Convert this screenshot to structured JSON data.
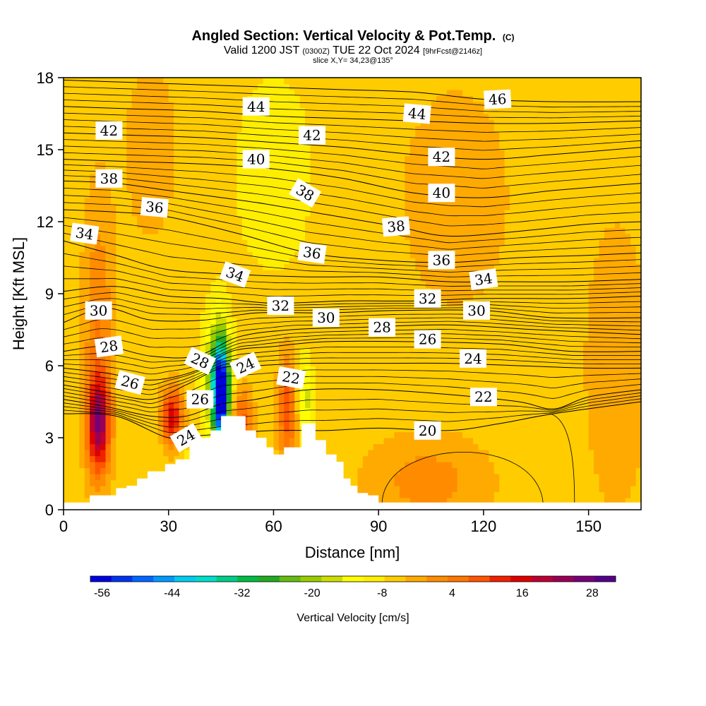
{
  "title": {
    "main": "Angled Section: Vertical Velocity & Pot.Temp.",
    "main_suffix": "(C)",
    "valid_prefix": "Valid 1200 JST",
    "valid_z": "(0300Z)",
    "valid_date": "TUE 22 Oct 2024",
    "valid_fcst": "[9hrFcst@2146z]",
    "slice": "slice X,Y= 34,23@135°"
  },
  "chart_data": {
    "type": "heatmap",
    "xlabel": "Distance [nm]",
    "ylabel": "Height [Kft MSL]",
    "xlim": [
      0,
      165
    ],
    "ylim": [
      0,
      18
    ],
    "x_ticks": [
      0,
      30,
      60,
      90,
      120,
      150
    ],
    "y_ticks": [
      0,
      3,
      6,
      9,
      12,
      15,
      18
    ],
    "colorbar": {
      "label": "Vertical Velocity [cm/s]",
      "min": -58,
      "max": 32,
      "step": 4,
      "tick_values": [
        -56,
        -44,
        -32,
        -20,
        -8,
        4,
        16,
        28
      ],
      "colors": [
        "#0000dd",
        "#0033ee",
        "#0066ff",
        "#0099ff",
        "#00ccee",
        "#00ddcc",
        "#00cc88",
        "#00bb44",
        "#22aa22",
        "#66bb11",
        "#99cc00",
        "#ccdd00",
        "#ffff00",
        "#ffee00",
        "#ffcc00",
        "#ffaa00",
        "#ff8c00",
        "#ff7700",
        "#ff5500",
        "#ee2200",
        "#dd0000",
        "#bb0033",
        "#990055",
        "#770077",
        "#550088"
      ]
    },
    "background_value": 0,
    "velocity_features": [
      {
        "x": 10,
        "y": 3.6,
        "sx": 2.2,
        "sy": 1.4,
        "value": 30
      },
      {
        "x": 10,
        "y": 7.5,
        "sx": 3.0,
        "sy": 3.8,
        "value": 10
      },
      {
        "x": 31,
        "y": 3.9,
        "sx": 2.0,
        "sy": 0.8,
        "value": 26
      },
      {
        "x": 45,
        "y": 4.8,
        "sx": 1.4,
        "sy": 1.3,
        "value": -56
      },
      {
        "x": 44,
        "y": 5.5,
        "sx": 2.6,
        "sy": 1.8,
        "value": -24
      },
      {
        "x": 51,
        "y": 3.8,
        "sx": 2.0,
        "sy": 0.9,
        "value": 16
      },
      {
        "x": 64,
        "y": 4.2,
        "sx": 1.8,
        "sy": 1.5,
        "value": 18
      },
      {
        "x": 69,
        "y": 4.6,
        "sx": 1.5,
        "sy": 1.2,
        "value": -12
      },
      {
        "x": 104,
        "y": 1.2,
        "sx": 12.0,
        "sy": 1.3,
        "value": 8
      },
      {
        "x": 112,
        "y": 13.0,
        "sx": 10.0,
        "sy": 3.0,
        "value": 6
      },
      {
        "x": 60,
        "y": 14.0,
        "sx": 8.0,
        "sy": 3.0,
        "value": -5
      },
      {
        "x": 25,
        "y": 15.0,
        "sx": 6.0,
        "sy": 3.0,
        "value": 4
      },
      {
        "x": 158,
        "y": 6.0,
        "sx": 6.0,
        "sy": 4.0,
        "value": 6
      },
      {
        "x": 40,
        "y": 2.1,
        "sx": 3.0,
        "sy": 0.5,
        "value": -14
      }
    ],
    "terrain_steps": [
      [
        0,
        0.3
      ],
      [
        7.5,
        0.6
      ],
      [
        15,
        0.9
      ],
      [
        18,
        1.0
      ],
      [
        21,
        1.3
      ],
      [
        24,
        1.6
      ],
      [
        29,
        1.9
      ],
      [
        32,
        2.1
      ],
      [
        36,
        2.8
      ],
      [
        38,
        3.0
      ],
      [
        42,
        3.3
      ],
      [
        45,
        3.9
      ],
      [
        48,
        3.9
      ],
      [
        52,
        3.3
      ],
      [
        55,
        3.0
      ],
      [
        58,
        2.6
      ],
      [
        60,
        2.3
      ],
      [
        62,
        2.3
      ],
      [
        63,
        2.6
      ],
      [
        65,
        2.6
      ],
      [
        68,
        3.6
      ],
      [
        70,
        3.6
      ],
      [
        72,
        2.9
      ],
      [
        75,
        2.3
      ],
      [
        78,
        2.0
      ],
      [
        80,
        1.3
      ],
      [
        82,
        1.0
      ],
      [
        84,
        0.7
      ],
      [
        87,
        0.6
      ],
      [
        90,
        0.3
      ],
      [
        165,
        0.3
      ]
    ],
    "isentropes": [
      {
        "theta": 20,
        "points": [
          [
            0,
            4.0
          ],
          [
            15,
            3.9
          ],
          [
            30,
            3.0
          ],
          [
            40,
            3.1
          ],
          [
            60,
            3.3
          ],
          [
            75,
            3.3
          ],
          [
            90,
            3.4
          ],
          [
            110,
            3.3
          ],
          [
            125,
            3.6
          ],
          [
            140,
            4.0
          ],
          [
            165,
            4.5
          ]
        ]
      },
      {
        "theta": 22,
        "points": [
          [
            0,
            4.6
          ],
          [
            12,
            4.3
          ],
          [
            25,
            3.9
          ],
          [
            35,
            3.9
          ],
          [
            45,
            4.4
          ],
          [
            55,
            4.6
          ],
          [
            70,
            5.0
          ],
          [
            90,
            5.0
          ],
          [
            110,
            4.8
          ],
          [
            130,
            4.5
          ],
          [
            140,
            4.2
          ],
          [
            150,
            4.7
          ],
          [
            165,
            5.0
          ]
        ]
      },
      {
        "theta": 24,
        "points": [
          [
            0,
            5.2
          ],
          [
            12,
            4.9
          ],
          [
            25,
            4.6
          ],
          [
            35,
            5.2
          ],
          [
            45,
            5.9
          ],
          [
            55,
            6.0
          ],
          [
            70,
            6.1
          ],
          [
            90,
            6.1
          ],
          [
            110,
            6.1
          ],
          [
            130,
            6.0
          ],
          [
            150,
            5.9
          ],
          [
            165,
            5.9
          ]
        ]
      },
      {
        "theta": 26,
        "points": [
          [
            0,
            5.9
          ],
          [
            12,
            5.7
          ],
          [
            25,
            5.4
          ],
          [
            38,
            5.8
          ],
          [
            48,
            6.6
          ],
          [
            60,
            6.8
          ],
          [
            75,
            7.0
          ],
          [
            100,
            7.0
          ],
          [
            125,
            6.9
          ],
          [
            145,
            6.6
          ],
          [
            165,
            6.6
          ]
        ]
      },
      {
        "theta": 28,
        "points": [
          [
            0,
            6.6
          ],
          [
            12,
            6.8
          ],
          [
            25,
            6.4
          ],
          [
            38,
            6.4
          ],
          [
            50,
            7.2
          ],
          [
            65,
            7.5
          ],
          [
            85,
            7.6
          ],
          [
            110,
            7.7
          ],
          [
            135,
            7.5
          ],
          [
            165,
            7.3
          ]
        ]
      },
      {
        "theta": 30,
        "points": [
          [
            0,
            7.8
          ],
          [
            12,
            8.4
          ],
          [
            25,
            7.9
          ],
          [
            40,
            7.9
          ],
          [
            55,
            8.2
          ],
          [
            75,
            8.2
          ],
          [
            95,
            8.3
          ],
          [
            120,
            8.3
          ],
          [
            140,
            8.0
          ],
          [
            165,
            8.0
          ]
        ]
      },
      {
        "theta": 32,
        "points": [
          [
            0,
            9.1
          ],
          [
            15,
            9.3
          ],
          [
            30,
            8.9
          ],
          [
            45,
            8.8
          ],
          [
            60,
            8.6
          ],
          [
            80,
            8.7
          ],
          [
            100,
            8.7
          ],
          [
            120,
            8.8
          ],
          [
            145,
            8.8
          ],
          [
            165,
            8.9
          ]
        ]
      },
      {
        "theta": 34,
        "points": [
          [
            0,
            11.2
          ],
          [
            15,
            10.6
          ],
          [
            30,
            10.0
          ],
          [
            50,
            9.8
          ],
          [
            70,
            9.7
          ],
          [
            90,
            9.7
          ],
          [
            110,
            9.5
          ],
          [
            125,
            9.5
          ],
          [
            145,
            9.5
          ],
          [
            165,
            9.6
          ]
        ]
      },
      {
        "theta": 36,
        "points": [
          [
            0,
            12.5
          ],
          [
            15,
            12.4
          ],
          [
            30,
            12.2
          ],
          [
            50,
            11.5
          ],
          [
            70,
            10.7
          ],
          [
            90,
            10.4
          ],
          [
            110,
            10.3
          ],
          [
            130,
            10.5
          ],
          [
            150,
            10.6
          ],
          [
            165,
            10.7
          ]
        ]
      },
      {
        "theta": 38,
        "points": [
          [
            0,
            13.7
          ],
          [
            15,
            13.6
          ],
          [
            30,
            13.3
          ],
          [
            55,
            12.8
          ],
          [
            75,
            12.3
          ],
          [
            95,
            11.8
          ],
          [
            110,
            11.4
          ],
          [
            130,
            11.6
          ],
          [
            150,
            11.9
          ],
          [
            165,
            12.0
          ]
        ]
      },
      {
        "theta": 40,
        "points": [
          [
            0,
            14.6
          ],
          [
            20,
            14.5
          ],
          [
            40,
            14.4
          ],
          [
            60,
            14.2
          ],
          [
            80,
            13.8
          ],
          [
            100,
            13.2
          ],
          [
            120,
            13.0
          ],
          [
            140,
            13.3
          ],
          [
            165,
            13.6
          ]
        ]
      },
      {
        "theta": 42,
        "points": [
          [
            0,
            15.7
          ],
          [
            20,
            15.6
          ],
          [
            40,
            15.5
          ],
          [
            60,
            15.3
          ],
          [
            80,
            15.1
          ],
          [
            100,
            14.8
          ],
          [
            120,
            14.6
          ],
          [
            140,
            14.8
          ],
          [
            165,
            15.1
          ]
        ]
      },
      {
        "theta": 44,
        "points": [
          [
            0,
            16.8
          ],
          [
            20,
            16.7
          ],
          [
            40,
            16.6
          ],
          [
            60,
            16.4
          ],
          [
            80,
            16.3
          ],
          [
            100,
            16.2
          ],
          [
            120,
            16.1
          ],
          [
            140,
            16.1
          ],
          [
            165,
            16.2
          ]
        ]
      },
      {
        "theta": 46,
        "points": [
          [
            0,
            17.9
          ],
          [
            20,
            17.8
          ],
          [
            40,
            17.7
          ],
          [
            60,
            17.6
          ],
          [
            80,
            17.5
          ],
          [
            100,
            17.4
          ],
          [
            120,
            17.1
          ],
          [
            140,
            17.0
          ],
          [
            165,
            17.0
          ]
        ]
      }
    ],
    "contour_labels": [
      {
        "text": "20",
        "x": 104,
        "y": 3.3,
        "angle": 0
      },
      {
        "text": "22",
        "x": 120,
        "y": 4.7,
        "angle": 0
      },
      {
        "text": "22",
        "x": 65,
        "y": 5.5,
        "angle": 10
      },
      {
        "text": "24",
        "x": 35,
        "y": 3.0,
        "angle": -30
      },
      {
        "text": "24",
        "x": 52,
        "y": 6.0,
        "angle": -25
      },
      {
        "text": "24",
        "x": 117,
        "y": 6.3,
        "angle": 0
      },
      {
        "text": "26",
        "x": 39,
        "y": 4.6,
        "angle": 0
      },
      {
        "text": "26",
        "x": 19,
        "y": 5.3,
        "angle": 15
      },
      {
        "text": "26",
        "x": 104,
        "y": 7.1,
        "angle": 0
      },
      {
        "text": "28",
        "x": 13,
        "y": 6.8,
        "angle": -8
      },
      {
        "text": "28",
        "x": 39,
        "y": 6.2,
        "angle": 25
      },
      {
        "text": "28",
        "x": 91,
        "y": 7.6,
        "angle": 0
      },
      {
        "text": "30",
        "x": 10,
        "y": 8.3,
        "angle": 0
      },
      {
        "text": "30",
        "x": 75,
        "y": 8.0,
        "angle": 0
      },
      {
        "text": "30",
        "x": 118,
        "y": 8.3,
        "angle": 0
      },
      {
        "text": "32",
        "x": 62,
        "y": 8.5,
        "angle": 0
      },
      {
        "text": "32",
        "x": 104,
        "y": 8.8,
        "angle": 0
      },
      {
        "text": "34",
        "x": 6,
        "y": 11.5,
        "angle": 8
      },
      {
        "text": "34",
        "x": 49,
        "y": 9.8,
        "angle": 20
      },
      {
        "text": "34",
        "x": 120,
        "y": 9.6,
        "angle": -8
      },
      {
        "text": "36",
        "x": 26,
        "y": 12.6,
        "angle": 5
      },
      {
        "text": "36",
        "x": 71,
        "y": 10.7,
        "angle": 8
      },
      {
        "text": "36",
        "x": 108,
        "y": 10.4,
        "angle": 0
      },
      {
        "text": "38",
        "x": 13,
        "y": 13.8,
        "angle": 0
      },
      {
        "text": "38",
        "x": 69,
        "y": 13.2,
        "angle": 30
      },
      {
        "text": "38",
        "x": 95,
        "y": 11.8,
        "angle": -5
      },
      {
        "text": "40",
        "x": 55,
        "y": 14.6,
        "angle": 0
      },
      {
        "text": "40",
        "x": 108,
        "y": 13.2,
        "angle": 0
      },
      {
        "text": "42",
        "x": 13,
        "y": 15.8,
        "angle": 0
      },
      {
        "text": "42",
        "x": 71,
        "y": 15.6,
        "angle": 0
      },
      {
        "text": "42",
        "x": 108,
        "y": 14.7,
        "angle": 0
      },
      {
        "text": "44",
        "x": 55,
        "y": 16.8,
        "angle": 0
      },
      {
        "text": "44",
        "x": 101,
        "y": 16.5,
        "angle": 5
      },
      {
        "text": "46",
        "x": 124,
        "y": 17.1,
        "angle": -3
      }
    ]
  }
}
